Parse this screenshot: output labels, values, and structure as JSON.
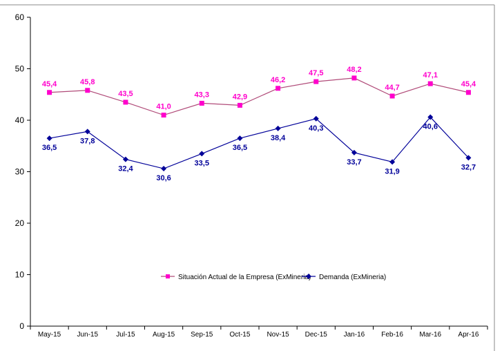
{
  "chart_data": {
    "type": "line",
    "title": "",
    "xlabel": "",
    "ylabel": "",
    "categories": [
      "May-15",
      "Jun-15",
      "Jul-15",
      "Aug-15",
      "Sep-15",
      "Oct-15",
      "Nov-15",
      "Dec-15",
      "Jan-16",
      "Feb-16",
      "Mar-16",
      "Apr-16"
    ],
    "ylim": [
      0,
      60
    ],
    "yticks": [
      "0",
      "10",
      "20",
      "30",
      "40",
      "50",
      "60"
    ],
    "grid": false,
    "legend_position": "center-bottom",
    "series": [
      {
        "name": "Situación Actual de la Empresa (ExMineria)",
        "color": "#ff00cc",
        "line_color": "#b04a78",
        "marker": "square",
        "values": [
          45.4,
          45.8,
          43.5,
          41.0,
          43.3,
          42.9,
          46.2,
          47.5,
          48.2,
          44.7,
          47.1,
          45.4
        ],
        "labels": [
          "45,4",
          "45,8",
          "43,5",
          "41,0",
          "43,3",
          "42,9",
          "46,2",
          "47,5",
          "48,2",
          "44,7",
          "47,1",
          "45,4"
        ]
      },
      {
        "name": "Demanda (ExMineria)",
        "color": "#000099",
        "line_color": "#000099",
        "marker": "diamond",
        "values": [
          36.5,
          37.8,
          32.4,
          30.6,
          33.5,
          36.5,
          38.4,
          40.3,
          33.7,
          31.9,
          40.6,
          32.7
        ],
        "labels": [
          "36,5",
          "37,8",
          "32,4",
          "30,6",
          "33,5",
          "36,5",
          "38,4",
          "40,3",
          "33,7",
          "31,9",
          "40,6",
          "32,7"
        ]
      }
    ]
  }
}
